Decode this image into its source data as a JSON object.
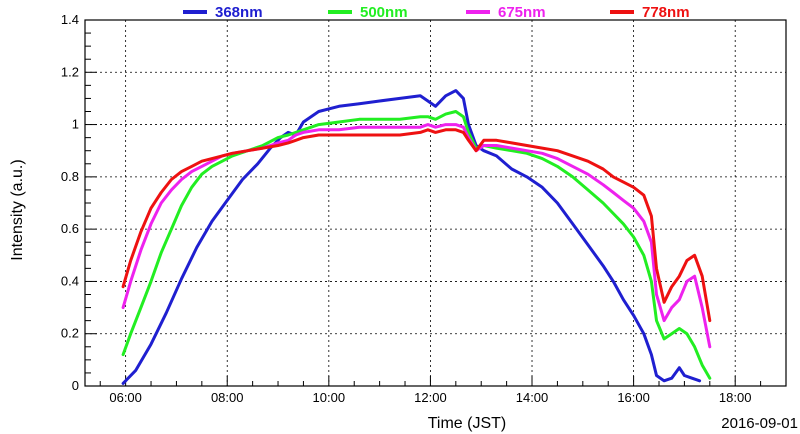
{
  "chart_data": {
    "type": "line",
    "xlabel": "Time (JST)",
    "ylabel": "Intensity (a.u.)",
    "date": "2016-09-01",
    "xlim": [
      5.2,
      19.0
    ],
    "ylim": [
      0,
      1.4
    ],
    "x_ticks": [
      6,
      8,
      10,
      12,
      14,
      16,
      18
    ],
    "x_tick_labels": [
      "06:00",
      "08:00",
      "10:00",
      "12:00",
      "14:00",
      "16:00",
      "18:00"
    ],
    "y_ticks": [
      0,
      0.2,
      0.4,
      0.6,
      0.8,
      1,
      1.2,
      1.4
    ],
    "y_tick_labels": [
      "0",
      "0.2",
      "0.4",
      "0.6",
      "0.8",
      "1",
      "1.2",
      "1.4"
    ],
    "grid": true,
    "legend_position": "top",
    "series": [
      {
        "name": "368nm",
        "color": "#1f1fd0",
        "x": [
          5.95,
          6.2,
          6.5,
          6.8,
          7.1,
          7.4,
          7.7,
          8.0,
          8.3,
          8.6,
          8.85,
          9.05,
          9.2,
          9.35,
          9.5,
          9.8,
          10.2,
          10.6,
          11.0,
          11.4,
          11.8,
          11.95,
          12.1,
          12.3,
          12.5,
          12.65,
          12.75,
          12.9,
          13.05,
          13.3,
          13.6,
          13.9,
          14.2,
          14.5,
          14.8,
          15.1,
          15.4,
          15.6,
          15.8,
          16.0,
          16.2,
          16.35,
          16.45,
          16.6,
          16.75,
          16.9,
          17.0,
          17.15,
          17.3
        ],
        "y": [
          0.01,
          0.06,
          0.16,
          0.28,
          0.41,
          0.53,
          0.63,
          0.71,
          0.79,
          0.85,
          0.91,
          0.95,
          0.97,
          0.96,
          1.01,
          1.05,
          1.07,
          1.08,
          1.09,
          1.1,
          1.11,
          1.09,
          1.07,
          1.11,
          1.13,
          1.1,
          1.0,
          0.92,
          0.9,
          0.88,
          0.83,
          0.8,
          0.76,
          0.7,
          0.62,
          0.54,
          0.46,
          0.4,
          0.33,
          0.27,
          0.2,
          0.12,
          0.04,
          0.02,
          0.03,
          0.07,
          0.04,
          0.03,
          0.02
        ]
      },
      {
        "name": "500nm",
        "color": "#22ee22",
        "x": [
          5.95,
          6.1,
          6.3,
          6.5,
          6.7,
          6.9,
          7.1,
          7.3,
          7.5,
          7.7,
          7.9,
          8.1,
          8.4,
          8.7,
          9.0,
          9.2,
          9.35,
          9.5,
          9.8,
          10.2,
          10.6,
          11.0,
          11.4,
          11.8,
          11.95,
          12.1,
          12.3,
          12.5,
          12.65,
          12.75,
          12.9,
          13.05,
          13.3,
          13.6,
          13.9,
          14.2,
          14.5,
          14.8,
          15.1,
          15.4,
          15.6,
          15.8,
          16.0,
          16.2,
          16.35,
          16.45,
          16.6,
          16.75,
          16.9,
          17.05,
          17.2,
          17.35,
          17.5
        ],
        "y": [
          0.12,
          0.2,
          0.3,
          0.4,
          0.51,
          0.6,
          0.69,
          0.76,
          0.81,
          0.84,
          0.86,
          0.88,
          0.9,
          0.92,
          0.95,
          0.96,
          0.97,
          0.98,
          1.0,
          1.01,
          1.02,
          1.02,
          1.02,
          1.03,
          1.03,
          1.02,
          1.04,
          1.05,
          1.03,
          0.97,
          0.91,
          0.92,
          0.91,
          0.9,
          0.89,
          0.87,
          0.84,
          0.8,
          0.75,
          0.7,
          0.66,
          0.62,
          0.57,
          0.5,
          0.4,
          0.25,
          0.18,
          0.2,
          0.22,
          0.2,
          0.15,
          0.08,
          0.03
        ]
      },
      {
        "name": "675nm",
        "color": "#ee22ee",
        "x": [
          5.95,
          6.1,
          6.3,
          6.5,
          6.7,
          6.9,
          7.1,
          7.3,
          7.5,
          7.7,
          7.9,
          8.1,
          8.4,
          8.7,
          9.0,
          9.2,
          9.35,
          9.5,
          9.8,
          10.2,
          10.6,
          11.0,
          11.4,
          11.8,
          11.95,
          12.1,
          12.3,
          12.5,
          12.65,
          12.75,
          12.9,
          13.05,
          13.3,
          13.6,
          13.9,
          14.2,
          14.5,
          14.8,
          15.1,
          15.4,
          15.6,
          15.8,
          16.0,
          16.2,
          16.35,
          16.45,
          16.6,
          16.75,
          16.9,
          17.05,
          17.2,
          17.35,
          17.5
        ],
        "y": [
          0.3,
          0.4,
          0.52,
          0.62,
          0.7,
          0.75,
          0.79,
          0.82,
          0.84,
          0.86,
          0.88,
          0.89,
          0.9,
          0.91,
          0.93,
          0.94,
          0.96,
          0.97,
          0.98,
          0.98,
          0.99,
          0.99,
          0.99,
          0.99,
          1.0,
          0.99,
          1.0,
          1.0,
          0.99,
          0.95,
          0.9,
          0.92,
          0.92,
          0.91,
          0.9,
          0.89,
          0.87,
          0.84,
          0.81,
          0.77,
          0.74,
          0.71,
          0.68,
          0.63,
          0.55,
          0.35,
          0.25,
          0.3,
          0.33,
          0.4,
          0.42,
          0.3,
          0.15
        ]
      },
      {
        "name": "778nm",
        "color": "#ee1111",
        "x": [
          5.95,
          6.1,
          6.3,
          6.5,
          6.7,
          6.9,
          7.1,
          7.3,
          7.5,
          7.7,
          7.9,
          8.1,
          8.4,
          8.7,
          9.0,
          9.2,
          9.35,
          9.5,
          9.8,
          10.2,
          10.6,
          11.0,
          11.4,
          11.8,
          11.95,
          12.1,
          12.3,
          12.5,
          12.65,
          12.75,
          12.9,
          13.05,
          13.3,
          13.6,
          13.9,
          14.2,
          14.5,
          14.8,
          15.1,
          15.4,
          15.6,
          15.8,
          16.0,
          16.2,
          16.35,
          16.45,
          16.6,
          16.75,
          16.9,
          17.05,
          17.2,
          17.35,
          17.5
        ],
        "y": [
          0.38,
          0.48,
          0.59,
          0.68,
          0.74,
          0.79,
          0.82,
          0.84,
          0.86,
          0.87,
          0.88,
          0.89,
          0.9,
          0.91,
          0.92,
          0.93,
          0.94,
          0.95,
          0.96,
          0.96,
          0.96,
          0.96,
          0.96,
          0.97,
          0.98,
          0.97,
          0.98,
          0.98,
          0.97,
          0.94,
          0.9,
          0.94,
          0.94,
          0.93,
          0.92,
          0.91,
          0.9,
          0.88,
          0.86,
          0.83,
          0.8,
          0.78,
          0.76,
          0.73,
          0.65,
          0.45,
          0.32,
          0.38,
          0.42,
          0.48,
          0.5,
          0.42,
          0.25
        ]
      }
    ]
  }
}
